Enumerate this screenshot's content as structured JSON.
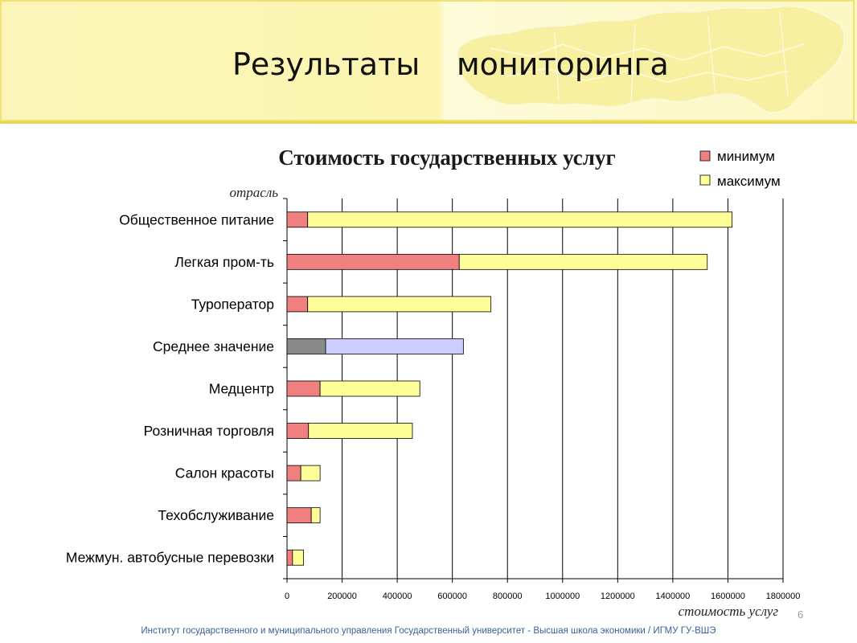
{
  "slide": {
    "title_part1": "Результаты",
    "title_part2": "мониторинга",
    "footer": "Институт государственного и муниципального управления Государственный университет - Высшая школа экономики / ИГМУ ГУ-ВШЭ",
    "page_number": "6"
  },
  "colors": {
    "min": "#f08080",
    "max": "#ffff99",
    "avg_min": "#8a8a8a",
    "avg_max": "#ccccff",
    "header_bg": "#fbf6b8",
    "footer_text": "#3b5f99"
  },
  "chart_data": {
    "type": "bar",
    "orientation": "horizontal",
    "stacked": true,
    "title": "Стоимость государственных услуг",
    "ylabel": "отрасль",
    "xlabel": "стоимость услуг",
    "xlim": [
      0,
      1800000
    ],
    "x_ticks": [
      "0",
      "200000",
      "400000",
      "600000",
      "800000",
      "1000000",
      "1200000",
      "1400000",
      "1600000",
      "1800000"
    ],
    "grid": true,
    "legend": "top-right",
    "categories": [
      "Общественное питание",
      "Легкая пром-ть",
      "Туроператор",
      "Среднее значение",
      "Медцентр",
      "Розничная торговля",
      "Салон красоты",
      "Техобслуживание",
      "Межмун. автобусные перевозки"
    ],
    "series": [
      {
        "name": "минимум",
        "values": [
          75000,
          625000,
          75000,
          140000,
          120000,
          78000,
          50000,
          88000,
          20000
        ]
      },
      {
        "name": "максимум",
        "values": [
          1540000,
          900000,
          665000,
          500000,
          362000,
          377000,
          70000,
          32000,
          40000
        ]
      }
    ],
    "highlight_category": "Среднее значение"
  }
}
